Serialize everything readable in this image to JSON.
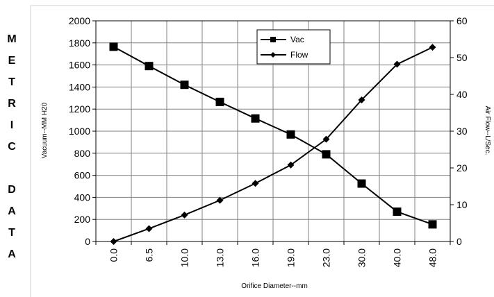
{
  "side_label": [
    "M",
    "E",
    "T",
    "R",
    "I",
    "C",
    "",
    "D",
    "A",
    "T",
    "A"
  ],
  "chart_data": {
    "type": "line",
    "categories": [
      "0.0",
      "6.5",
      "10.0",
      "13.0",
      "16.0",
      "19.0",
      "23.0",
      "30.0",
      "40.0",
      "48.0"
    ],
    "series": [
      {
        "name": "Vac",
        "axis": "left",
        "marker": "square",
        "values": [
          1765,
          1590,
          1420,
          1265,
          1115,
          970,
          790,
          525,
          270,
          155
        ]
      },
      {
        "name": "Flow",
        "axis": "right",
        "marker": "diamond",
        "values": [
          0,
          3.5,
          7.2,
          11.2,
          15.8,
          20.8,
          27.8,
          38.5,
          48.2,
          52.8
        ]
      }
    ],
    "xlabel": "Orifice Diameter--mm",
    "ylabel": "Vacuum--MM H20",
    "y2label": "Air Flow--L/Sec.",
    "ylim": [
      0,
      2000
    ],
    "yticks": [
      0,
      200,
      400,
      600,
      800,
      1000,
      1200,
      1400,
      1600,
      1800,
      2000
    ],
    "y2lim": [
      0,
      60
    ],
    "y2ticks": [
      0,
      10,
      20,
      30,
      40,
      50,
      60
    ],
    "grid": true,
    "legend_position": "top-center",
    "line_color": "#000000",
    "grid_color": "#808080"
  }
}
